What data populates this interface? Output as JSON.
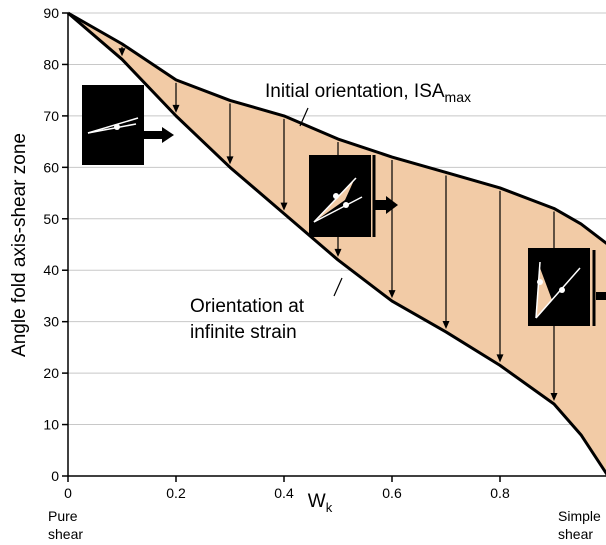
{
  "chart_data": {
    "type": "area-between",
    "y_label": "Angle fold axis-shear zone",
    "x_label": {
      "text": "W",
      "sub": "k"
    },
    "x": [
      0,
      0.1,
      0.2,
      0.3,
      0.4,
      0.5,
      0.6,
      0.7,
      0.8,
      0.9,
      0.95,
      1
    ],
    "series": [
      {
        "values": [
          90,
          84,
          77,
          73,
          70,
          65.5,
          62,
          59,
          56,
          52,
          49,
          45
        ],
        "color": "#000000"
      },
      {
        "values": [
          90,
          81,
          70,
          60,
          51,
          42,
          34,
          28,
          21.5,
          14,
          8,
          0
        ],
        "color": "#000000"
      }
    ],
    "fill": "#f2cba6",
    "xlim": [
      0,
      1
    ],
    "ylim": [
      0,
      90
    ],
    "xticks": [
      0,
      0.2,
      0.4,
      0.6,
      0.8
    ],
    "yticks": [
      0,
      10,
      20,
      30,
      40,
      50,
      60,
      70,
      80,
      90
    ],
    "grid": true,
    "annotations": [
      {
        "text": "Initial orientation, ISA",
        "sub": "max"
      },
      {
        "lines": [
          "Orientation at",
          "infinite strain"
        ]
      }
    ],
    "end_labels": [
      {
        "lines": [
          "Pure",
          "shear"
        ]
      },
      {
        "lines": [
          "Simple",
          "shear"
        ]
      }
    ]
  }
}
